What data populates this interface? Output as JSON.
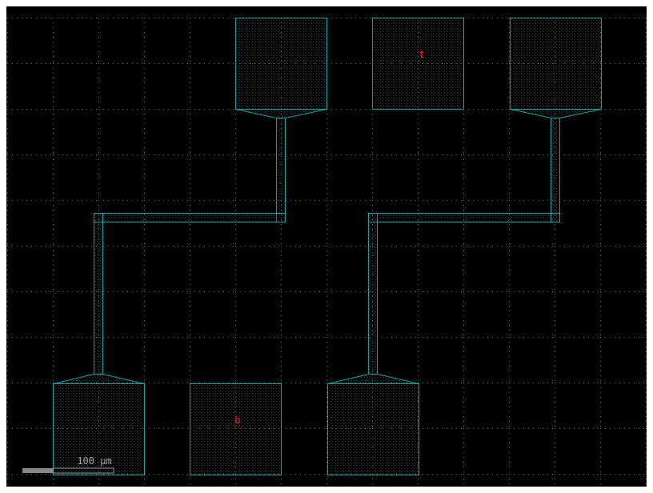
{
  "canvas": {
    "background": "#000000",
    "grid_color": "#8a8a8a",
    "fill_color": "#8a1050",
    "outline_color": "#00a8a8",
    "label_color": "#ff2020"
  },
  "labels": {
    "top": "t",
    "bottom": "b"
  },
  "scale_bar": {
    "label": "100 µm"
  }
}
